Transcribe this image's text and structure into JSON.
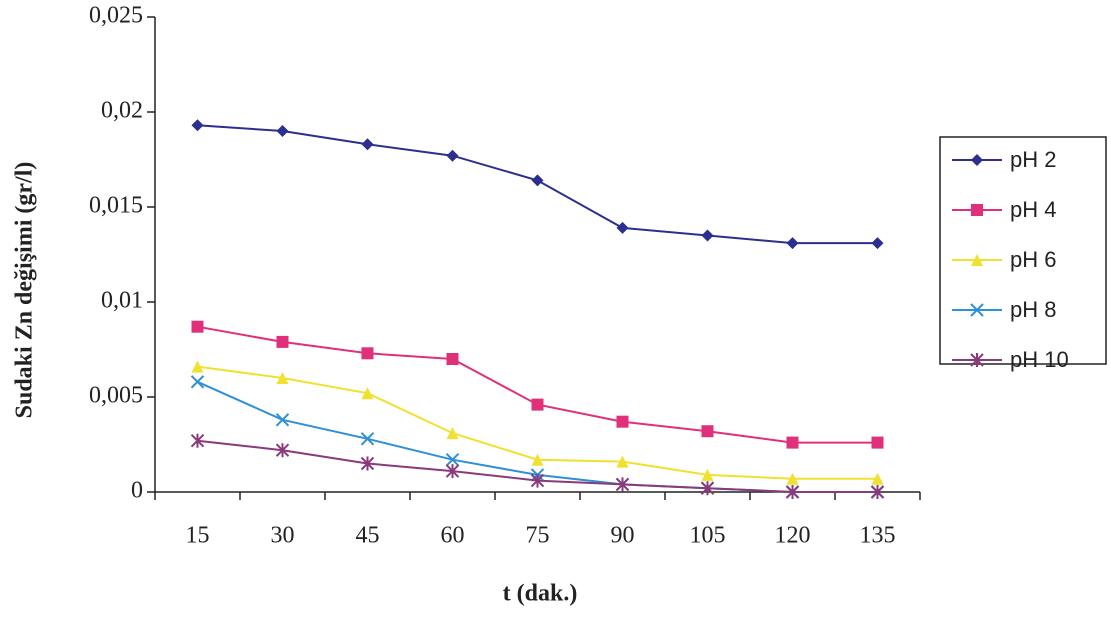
{
  "chart_data": {
    "type": "line",
    "x_label": "t (dak.)",
    "y_label": "Sudaki Zn değişimi (gr/l)",
    "categories": [
      "15",
      "30",
      "45",
      "60",
      "75",
      "90",
      "105",
      "120",
      "135"
    ],
    "ylim": [
      0,
      0.025
    ],
    "yticks": [
      0,
      {
        "value": 0.005,
        "label": "0,005"
      },
      {
        "value": 0.01,
        "label": "0,01"
      },
      {
        "value": 0.015,
        "label": "0,015"
      },
      {
        "value": 0.02,
        "label": "0,02"
      },
      {
        "value": 0.025,
        "label": "0,025"
      }
    ],
    "grid": false,
    "legend": "right",
    "series": [
      {
        "name": "pH 2",
        "color": "#2b2f8f",
        "marker": "diamond",
        "values": [
          0.0193,
          0.019,
          0.0183,
          0.0177,
          0.0164,
          0.0139,
          0.0135,
          0.0131,
          0.0131
        ]
      },
      {
        "name": "pH 4",
        "color": "#e0307a",
        "marker": "square",
        "values": [
          0.0087,
          0.0079,
          0.0073,
          0.007,
          0.0046,
          0.0037,
          0.0032,
          0.0026,
          0.0026
        ]
      },
      {
        "name": "pH 6",
        "color": "#f0e030",
        "marker": "triangle",
        "values": [
          0.0066,
          0.006,
          0.0052,
          0.0031,
          0.0017,
          0.0016,
          0.0009,
          0.0007,
          0.0007
        ]
      },
      {
        "name": "pH 8",
        "color": "#2f8fd8",
        "marker": "x",
        "values": [
          0.0058,
          0.0038,
          0.0028,
          0.0017,
          0.0009,
          0.0004,
          0.0002,
          0,
          0
        ]
      },
      {
        "name": "pH 10",
        "color": "#8a3a7a",
        "marker": "asterisk",
        "values": [
          0.0027,
          0.0022,
          0.0015,
          0.0011,
          0.0006,
          0.0004,
          0.0002,
          0,
          0
        ]
      }
    ]
  }
}
